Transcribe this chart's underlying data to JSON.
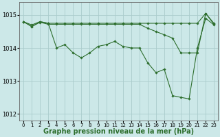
{
  "background_color": "#cce8e8",
  "grid_color": "#aacccc",
  "line_color": "#2d6e2d",
  "marker_color": "#2d6e2d",
  "xlabel": "Graphe pression niveau de la mer (hPa)",
  "xlabel_fontsize": 7,
  "ylim": [
    1011.8,
    1015.4
  ],
  "xlim": [
    -0.5,
    23.5
  ],
  "yticks": [
    1012,
    1013,
    1014,
    1015
  ],
  "xticks": [
    0,
    1,
    2,
    3,
    4,
    5,
    6,
    7,
    8,
    9,
    10,
    11,
    12,
    13,
    14,
    15,
    16,
    17,
    18,
    19,
    20,
    21,
    22,
    23
  ],
  "series1": [
    1014.8,
    1014.7,
    1014.8,
    1014.75,
    1014.0,
    1014.1,
    1013.85,
    1013.7,
    1013.85,
    1014.05,
    1014.1,
    1014.2,
    1014.05,
    1014.0,
    1014.0,
    1013.55,
    1013.25,
    1013.35,
    1012.55,
    1012.5,
    1012.45,
    1014.0,
    1014.9,
    1014.7
  ],
  "series2": [
    1014.8,
    1014.65,
    1014.78,
    1014.72,
    1014.72,
    1014.72,
    1014.72,
    1014.72,
    1014.72,
    1014.72,
    1014.72,
    1014.72,
    1014.72,
    1014.72,
    1014.72,
    1014.6,
    1014.5,
    1014.4,
    1014.3,
    1013.85,
    1013.85,
    1013.85,
    1015.05,
    1014.72
  ],
  "series3": [
    1014.8,
    1014.65,
    1014.8,
    1014.75,
    1014.75,
    1014.75,
    1014.75,
    1014.75,
    1014.75,
    1014.75,
    1014.75,
    1014.75,
    1014.75,
    1014.75,
    1014.75,
    1014.75,
    1014.75,
    1014.75,
    1014.75,
    1014.75,
    1014.75,
    1014.75,
    1015.05,
    1014.75
  ]
}
